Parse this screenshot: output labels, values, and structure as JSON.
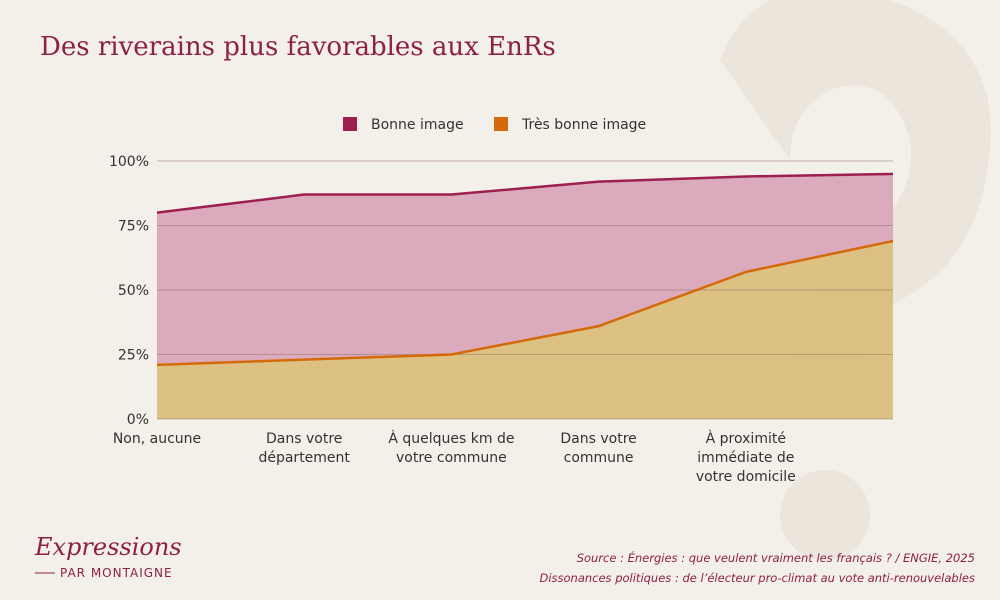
{
  "chart_data": {
    "type": "area",
    "title": "Des riverains plus favorables aux EnRs",
    "categories": [
      "Non, aucune",
      "Dans votre\ndépartement",
      "À quelques km de\nvotre commune",
      "Dans votre\ncommune",
      "À proximité\nimmédiate de\nvotre domicile",
      null
    ],
    "series": [
      {
        "name": "Bonne image",
        "color": "#9c1f4f",
        "fill": "#d9a5b8",
        "values": [
          80,
          87,
          87,
          92,
          94,
          95
        ]
      },
      {
        "name": "Très bonne image",
        "color": "#d4690a",
        "fill": "#dcc27e",
        "values": [
          21,
          23,
          25,
          36,
          57,
          69
        ]
      }
    ],
    "ylim": [
      0,
      100
    ],
    "yticks": [
      {
        "value": 0,
        "label": "0%"
      },
      {
        "value": 25,
        "label": "25%"
      },
      {
        "value": 50,
        "label": "50%"
      },
      {
        "value": 75,
        "label": "75%"
      },
      {
        "value": 100,
        "label": "100%"
      }
    ],
    "grid": true,
    "legend": "top"
  },
  "brand": {
    "name": "Expressions",
    "tagline": "PAR MONTAIGNE"
  },
  "source": [
    "Source : Énergies : que veulent vraiment les français ? / ENGIE, 2025",
    "Dissonances politiques : de l’électeur pro-climat au vote anti-renouvelables"
  ]
}
